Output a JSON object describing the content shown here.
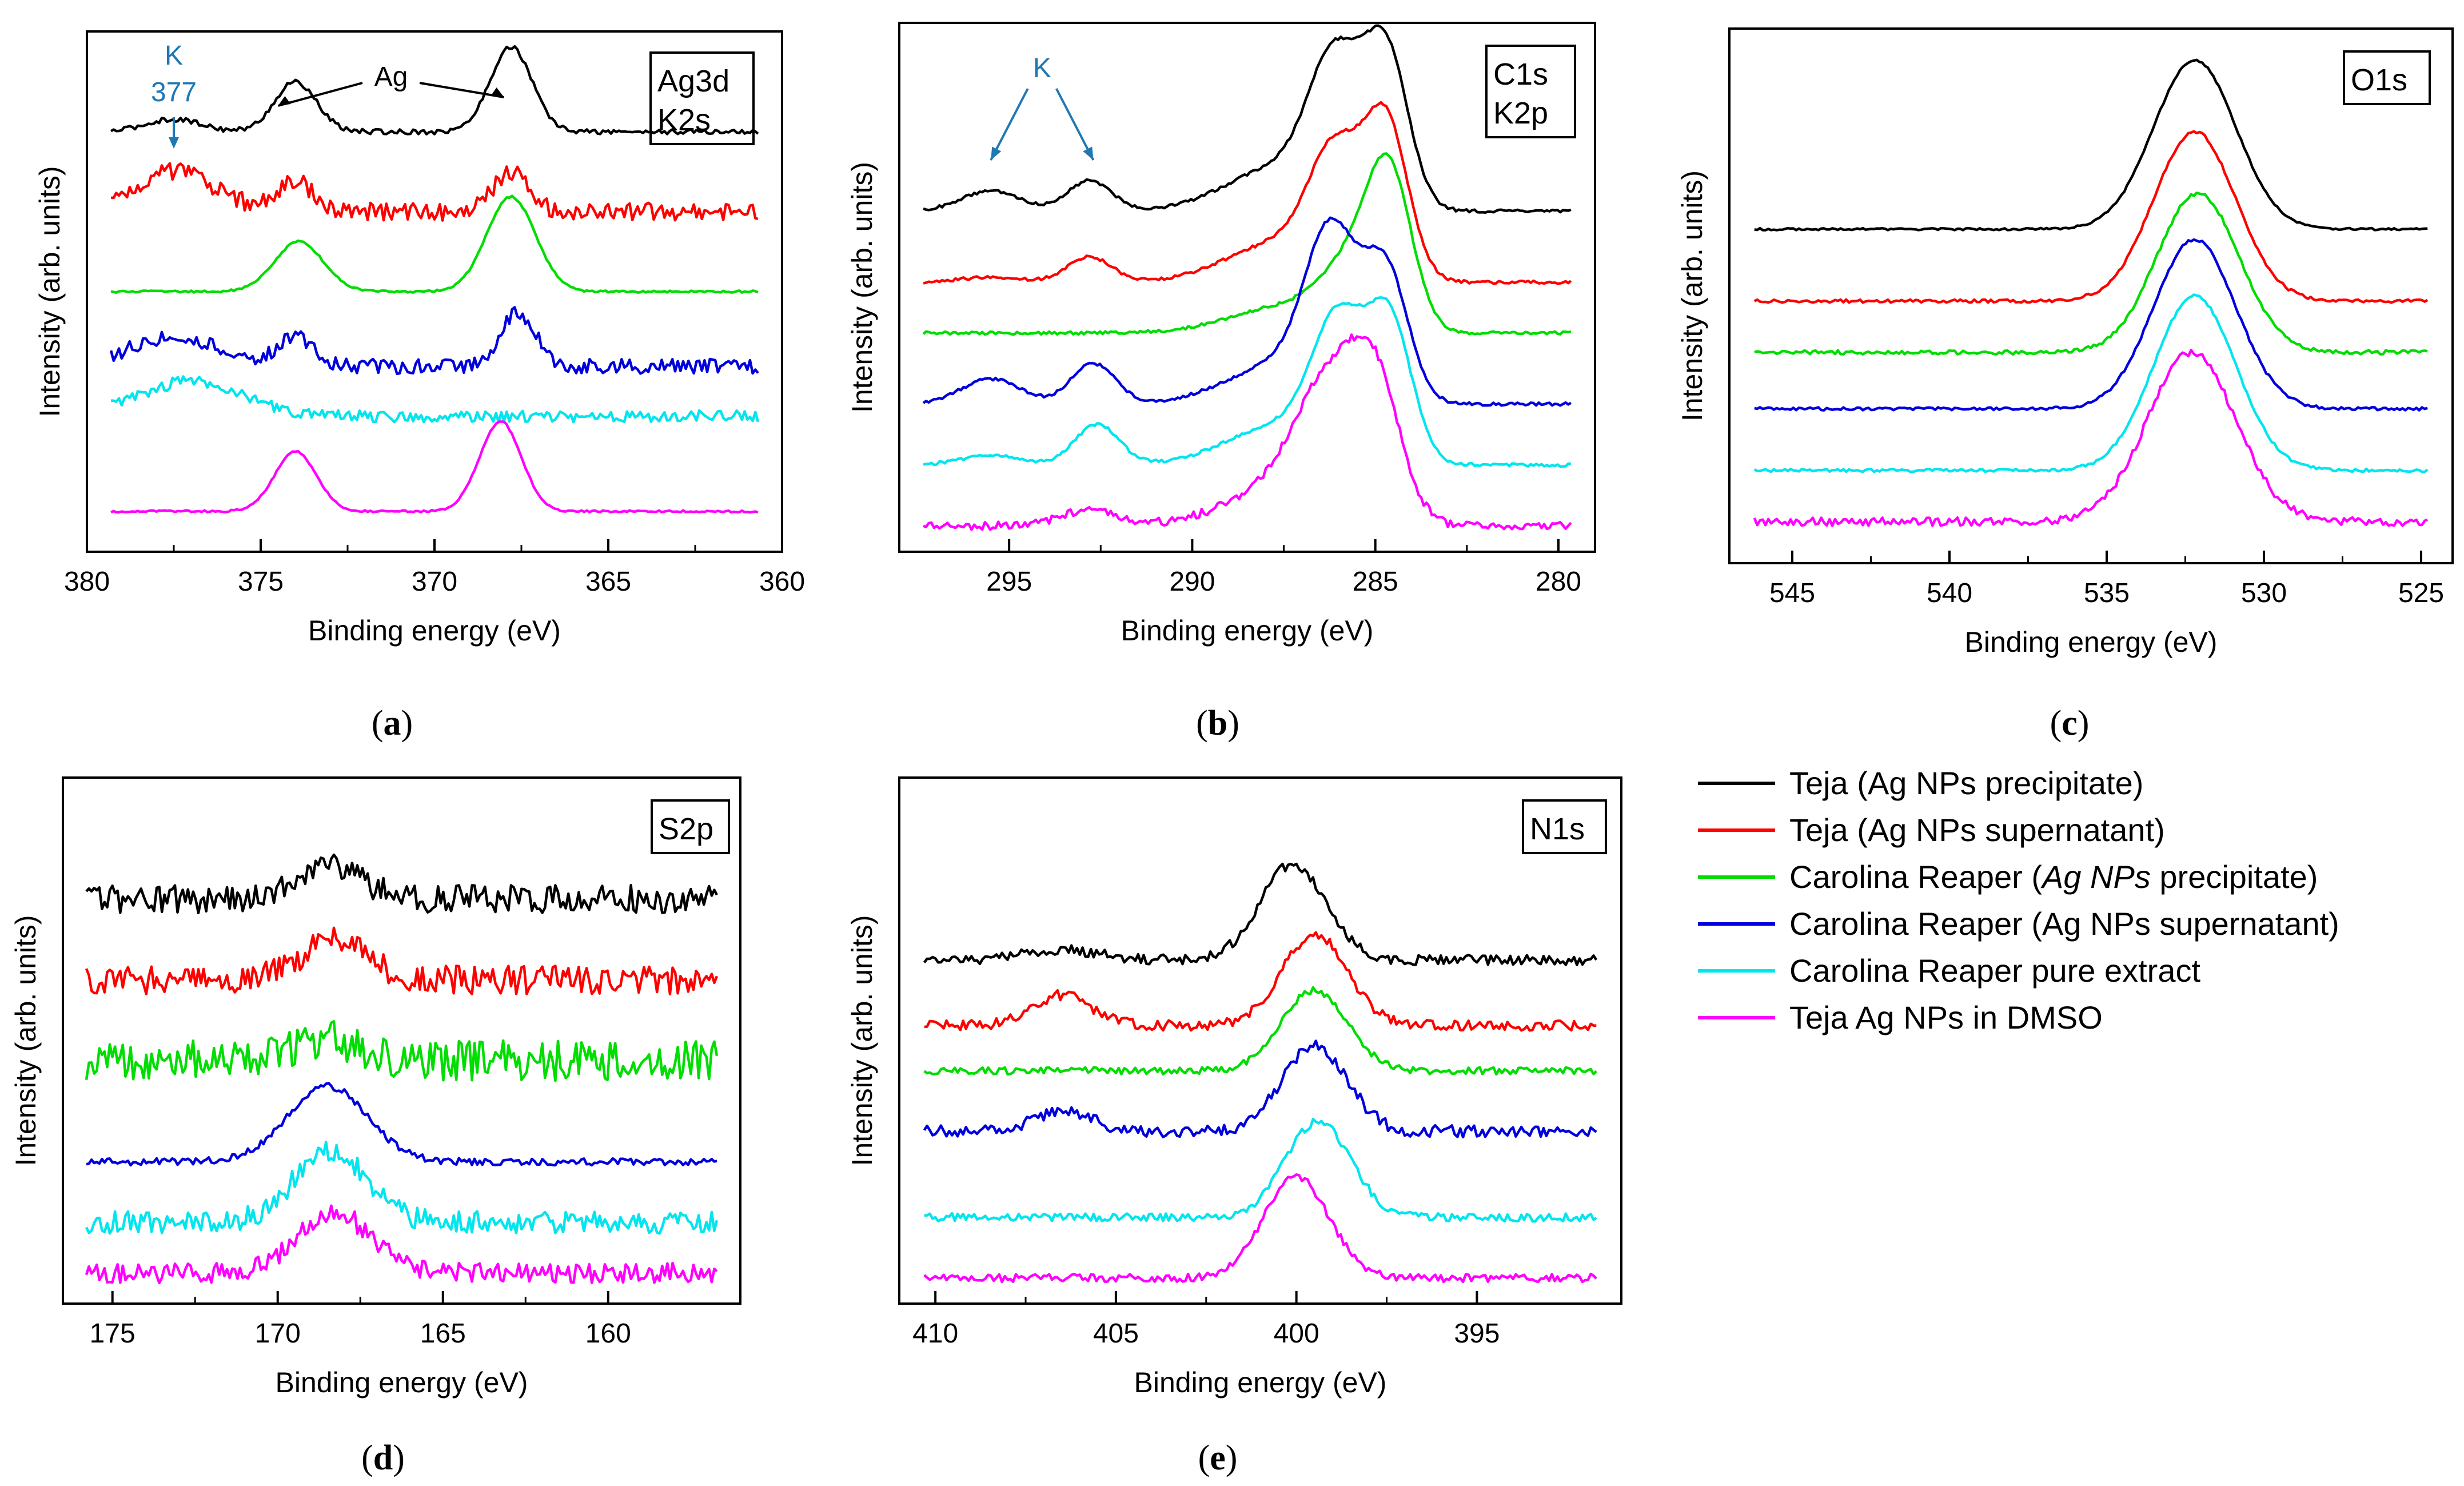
{
  "series_colors": [
    "#000000",
    "#ff0000",
    "#00dd00",
    "#0000dd",
    "#00e5ee",
    "#ff00ff"
  ],
  "annotation_color": "#1f78b4",
  "legend": [
    {
      "text": "Teja (Ag NPs precipitate)"
    },
    {
      "text": "Teja (Ag NPs supernatant)"
    },
    {
      "text_before": "Carolina Reaper (",
      "text_italic": "Ag NPs",
      "text_after": " precipitate)"
    },
    {
      "text": "Carolina Reaper (Ag NPs supernatant)"
    },
    {
      "text": "Carolina Reaper pure extract"
    },
    {
      "text": "Teja Ag NPs in DMSO"
    }
  ],
  "chart_data": [
    {
      "type": "line",
      "panel": "a",
      "panel_label_open": "(",
      "panel_label_letter": "a",
      "panel_label_close": ")",
      "tag_lines": [
        "Ag3d",
        "K2s"
      ],
      "xlabel": "Binding energy (eV)",
      "ylabel": "Intensity (arb. units)",
      "xlim": [
        380,
        360
      ],
      "ylim": [
        0,
        10
      ],
      "xticks": [
        380,
        375,
        370,
        365,
        360
      ],
      "xtick_labels": [
        "380",
        "375",
        "370",
        "365",
        "360"
      ],
      "annotations": [
        {
          "text_lines": [
            "K",
            "377"
          ],
          "color": "#1f78b4",
          "type": "arrow-down",
          "at_x": 377.5
        },
        {
          "text": "Ag",
          "color": "#000000",
          "type": "double-arrow",
          "arrow_from": 374.5,
          "arrow_to": 368.0
        }
      ],
      "series": [
        {
          "name": "Teja (Ag NPs precipitate)",
          "baseline": 8.2,
          "noise": 0.05,
          "peaks": [
            {
              "x": 374.0,
              "a": 1.0,
              "w": 0.6
            },
            {
              "x": 367.8,
              "a": 1.7,
              "w": 0.6
            },
            {
              "x": 377.5,
              "a": 0.25,
              "w": 0.8
            }
          ]
        },
        {
          "name": "Teja (Ag NPs supernatant)",
          "baseline": 6.6,
          "noise": 0.18,
          "peaks": [
            {
              "x": 374.0,
              "a": 0.6,
              "w": 0.5
            },
            {
              "x": 367.8,
              "a": 0.8,
              "w": 0.5
            },
            {
              "x": 377.5,
              "a": 0.8,
              "w": 1.2
            }
          ]
        },
        {
          "name": "Carolina Reaper (Ag NPs precipitate)",
          "baseline": 5.0,
          "noise": 0.02,
          "peaks": [
            {
              "x": 373.9,
              "a": 1.0,
              "w": 0.7
            },
            {
              "x": 367.8,
              "a": 1.9,
              "w": 0.7
            }
          ]
        },
        {
          "name": "Carolina Reaper (Ag NPs supernatant)",
          "baseline": 3.5,
          "noise": 0.15,
          "peaks": [
            {
              "x": 374.0,
              "a": 0.6,
              "w": 0.5
            },
            {
              "x": 367.6,
              "a": 1.1,
              "w": 0.5
            },
            {
              "x": 377.5,
              "a": 0.6,
              "w": 1.3
            }
          ]
        },
        {
          "name": "Carolina Reaper pure extract",
          "baseline": 2.5,
          "noise": 0.12,
          "peaks": [
            {
              "x": 377.0,
              "a": 0.7,
              "w": 1.5
            }
          ]
        },
        {
          "name": "Teja Ag NPs in DMSO",
          "baseline": 0.6,
          "noise": 0.02,
          "peaks": [
            {
              "x": 374.0,
              "a": 1.2,
              "w": 0.6
            },
            {
              "x": 368.1,
              "a": 1.8,
              "w": 0.6
            }
          ]
        }
      ]
    },
    {
      "type": "line",
      "panel": "b",
      "panel_label_open": "(",
      "panel_label_letter": "b",
      "panel_label_close": ")",
      "tag_lines": [
        "C1s",
        "K2p"
      ],
      "xlabel": "Binding energy (eV)",
      "ylabel": "Intensity (arb. units)",
      "xlim": [
        298,
        279
      ],
      "ylim": [
        0,
        10
      ],
      "xticks": [
        295,
        290,
        285,
        280
      ],
      "xtick_labels": [
        "295",
        "290",
        "285",
        "280"
      ],
      "annotations": [
        {
          "text": "K",
          "color": "#1f78b4",
          "type": "two-arrows",
          "arrow_targets": [
            295.5,
            292.7
          ]
        }
      ],
      "series": [
        {
          "name": "Teja (Ag NPs precipitate)",
          "baseline": 6.5,
          "noise": 0.03,
          "peaks": [
            {
              "x": 295.5,
              "a": 0.4,
              "w": 0.8
            },
            {
              "x": 292.8,
              "a": 0.6,
              "w": 0.6
            },
            {
              "x": 286.1,
              "a": 2.6,
              "w": 0.7
            },
            {
              "x": 284.7,
              "a": 3.0,
              "w": 0.6
            },
            {
              "x": 287.5,
              "a": 0.9,
              "w": 1.5
            }
          ]
        },
        {
          "name": "Teja (Ag NPs supernatant)",
          "baseline": 5.1,
          "noise": 0.03,
          "peaks": [
            {
              "x": 295.5,
              "a": 0.1,
              "w": 0.8
            },
            {
              "x": 292.8,
              "a": 0.5,
              "w": 0.6
            },
            {
              "x": 286.1,
              "a": 2.2,
              "w": 0.7
            },
            {
              "x": 284.7,
              "a": 3.0,
              "w": 0.6
            },
            {
              "x": 287.5,
              "a": 0.8,
              "w": 1.5
            }
          ]
        },
        {
          "name": "Carolina Reaper (Ag NPs precipitate)",
          "baseline": 4.1,
          "noise": 0.03,
          "peaks": [
            {
              "x": 285.5,
              "a": 1.3,
              "w": 0.9
            },
            {
              "x": 284.6,
              "a": 2.6,
              "w": 0.6
            },
            {
              "x": 287.5,
              "a": 0.5,
              "w": 1.5
            }
          ]
        },
        {
          "name": "Carolina Reaper (Ag NPs supernatant)",
          "baseline": 2.7,
          "noise": 0.03,
          "peaks": [
            {
              "x": 295.5,
              "a": 0.5,
              "w": 0.8
            },
            {
              "x": 292.7,
              "a": 0.8,
              "w": 0.6
            },
            {
              "x": 286.2,
              "a": 3.0,
              "w": 0.7
            },
            {
              "x": 284.7,
              "a": 2.5,
              "w": 0.6
            },
            {
              "x": 287.5,
              "a": 0.8,
              "w": 1.5
            }
          ]
        },
        {
          "name": "Carolina Reaper pure extract",
          "baseline": 1.5,
          "noise": 0.03,
          "peaks": [
            {
              "x": 295.5,
              "a": 0.2,
              "w": 0.8
            },
            {
              "x": 292.6,
              "a": 0.8,
              "w": 0.6
            },
            {
              "x": 286.0,
              "a": 2.5,
              "w": 0.7
            },
            {
              "x": 284.6,
              "a": 2.7,
              "w": 0.6
            },
            {
              "x": 287.5,
              "a": 0.8,
              "w": 1.5
            }
          ]
        },
        {
          "name": "Teja Ag NPs in DMSO",
          "baseline": 0.3,
          "noise": 0.08,
          "peaks": [
            {
              "x": 292.8,
              "a": 0.3,
              "w": 0.8
            },
            {
              "x": 286.3,
              "a": 2.3,
              "w": 0.9
            },
            {
              "x": 285.0,
              "a": 2.5,
              "w": 0.7
            },
            {
              "x": 287.6,
              "a": 0.7,
              "w": 1.5
            }
          ]
        }
      ]
    },
    {
      "type": "line",
      "panel": "c",
      "panel_label_open": "(",
      "panel_label_letter": "c",
      "panel_label_close": ")",
      "tag_lines": [
        "O1s"
      ],
      "xlabel": "Binding energy (eV)",
      "ylabel": "Intensity (arb. units)",
      "xlim": [
        547,
        524
      ],
      "ylim": [
        0,
        10
      ],
      "xticks": [
        545,
        540,
        535,
        530,
        525
      ],
      "xtick_labels": [
        "545",
        "540",
        "535",
        "530",
        "525"
      ],
      "annotations": [],
      "series": [
        {
          "name": "Teja (Ag NPs precipitate)",
          "baseline": 6.3,
          "noise": 0.02,
          "peaks": [
            {
              "x": 532.2,
              "a": 3.3,
              "w": 1.3
            }
          ]
        },
        {
          "name": "Teja (Ag NPs supernatant)",
          "baseline": 4.9,
          "noise": 0.03,
          "peaks": [
            {
              "x": 532.2,
              "a": 3.3,
              "w": 1.3
            }
          ]
        },
        {
          "name": "Carolina Reaper (Ag NPs precipitate)",
          "baseline": 3.9,
          "noise": 0.04,
          "peaks": [
            {
              "x": 532.1,
              "a": 3.1,
              "w": 1.3
            }
          ]
        },
        {
          "name": "Carolina Reaper (Ag NPs supernatant)",
          "baseline": 2.8,
          "noise": 0.03,
          "peaks": [
            {
              "x": 532.2,
              "a": 3.3,
              "w": 1.3
            }
          ]
        },
        {
          "name": "Carolina Reaper pure extract",
          "baseline": 1.6,
          "noise": 0.03,
          "peaks": [
            {
              "x": 532.2,
              "a": 3.4,
              "w": 1.3
            }
          ]
        },
        {
          "name": "Teja Ag NPs in DMSO",
          "baseline": 0.6,
          "noise": 0.08,
          "peaks": [
            {
              "x": 532.3,
              "a": 3.3,
              "w": 1.4
            }
          ]
        }
      ]
    },
    {
      "type": "line",
      "panel": "d",
      "panel_label_open": "(",
      "panel_label_letter": "d",
      "panel_label_close": ")",
      "tag_lines": [
        "S2p"
      ],
      "xlabel": "Binding energy (eV)",
      "ylabel": "Intensity (arb. units)",
      "xlim": [
        176.5,
        156
      ],
      "ylim": [
        0,
        10
      ],
      "xticks": [
        175,
        170,
        165,
        160
      ],
      "xtick_labels": [
        "175",
        "170",
        "165",
        "160"
      ],
      "annotations": [],
      "series": [
        {
          "name": "Teja (Ag NPs precipitate)",
          "baseline": 7.8,
          "noise": 0.28,
          "peaks": [
            {
              "x": 168.5,
              "a": 0.7,
              "w": 1.0
            }
          ]
        },
        {
          "name": "Teja (Ag NPs supernatant)",
          "baseline": 6.2,
          "noise": 0.28,
          "peaks": [
            {
              "x": 168.3,
              "a": 0.8,
              "w": 1.0
            }
          ]
        },
        {
          "name": "Carolina Reaper (Ag NPs precipitate)",
          "baseline": 4.6,
          "noise": 0.4,
          "peaks": [
            {
              "x": 168.5,
              "a": 0.4,
              "w": 1.0
            }
          ]
        },
        {
          "name": "Carolina Reaper (Ag NPs supernatant)",
          "baseline": 2.6,
          "noise": 0.07,
          "peaks": [
            {
              "x": 168.5,
              "a": 1.5,
              "w": 1.2
            }
          ]
        },
        {
          "name": "Carolina Reaper pure extract",
          "baseline": 1.4,
          "noise": 0.22,
          "peaks": [
            {
              "x": 168.4,
              "a": 1.4,
              "w": 1.1
            }
          ]
        },
        {
          "name": "Teja Ag NPs in DMSO",
          "baseline": 0.4,
          "noise": 0.2,
          "peaks": [
            {
              "x": 168.3,
              "a": 1.2,
              "w": 1.1
            }
          ]
        }
      ]
    },
    {
      "type": "line",
      "panel": "e",
      "panel_label_open": "(",
      "panel_label_letter": "e",
      "panel_label_close": ")",
      "tag_lines": [
        "N1s"
      ],
      "xlabel": "Binding energy (eV)",
      "ylabel": "Intensity (arb. units)",
      "xlim": [
        411,
        391
      ],
      "ylim": [
        0,
        10
      ],
      "xticks": [
        410,
        405,
        400,
        395
      ],
      "xtick_labels": [
        "410",
        "405",
        "400",
        "395"
      ],
      "annotations": [],
      "series": [
        {
          "name": "Teja (Ag NPs precipitate)",
          "baseline": 6.6,
          "noise": 0.1,
          "peaks": [
            {
              "x": 400.1,
              "a": 1.9,
              "w": 0.9
            },
            {
              "x": 406.5,
              "a": 0.2,
              "w": 1.0
            }
          ]
        },
        {
          "name": "Teja (Ag NPs supernatant)",
          "baseline": 5.3,
          "noise": 0.1,
          "peaks": [
            {
              "x": 399.5,
              "a": 1.8,
              "w": 0.9
            },
            {
              "x": 406.5,
              "a": 0.6,
              "w": 0.8
            }
          ]
        },
        {
          "name": "Carolina Reaper (Ag NPs precipitate)",
          "baseline": 4.4,
          "noise": 0.07,
          "peaks": [
            {
              "x": 399.5,
              "a": 1.6,
              "w": 0.9
            }
          ]
        },
        {
          "name": "Carolina Reaper (Ag NPs supernatant)",
          "baseline": 3.2,
          "noise": 0.12,
          "peaks": [
            {
              "x": 399.5,
              "a": 1.7,
              "w": 0.9
            },
            {
              "x": 406.5,
              "a": 0.4,
              "w": 0.8
            }
          ]
        },
        {
          "name": "Carolina Reaper pure extract",
          "baseline": 1.5,
          "noise": 0.08,
          "peaks": [
            {
              "x": 399.4,
              "a": 1.9,
              "w": 0.9
            }
          ]
        },
        {
          "name": "Teja Ag NPs in DMSO",
          "baseline": 0.3,
          "noise": 0.08,
          "peaks": [
            {
              "x": 400.0,
              "a": 2.0,
              "w": 0.9
            }
          ]
        }
      ]
    }
  ]
}
